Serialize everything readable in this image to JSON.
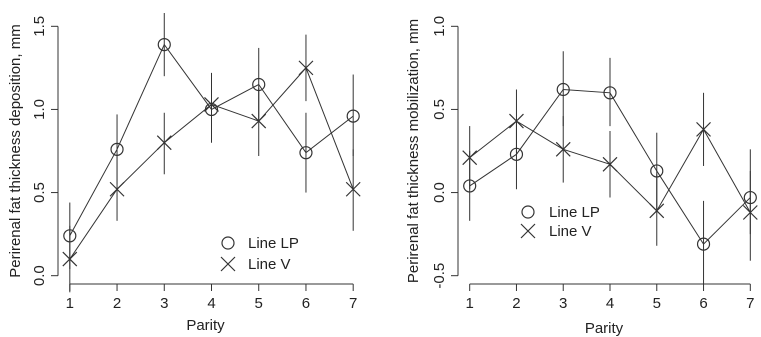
{
  "chart_data": [
    {
      "type": "line",
      "xlabel": "Parity",
      "ylabel": "Perirenal fat thickness deposition, mm",
      "x": [
        1,
        2,
        3,
        4,
        5,
        6,
        7
      ],
      "xlim": [
        0.75,
        7.25
      ],
      "ylim": [
        -0.05,
        1.55
      ],
      "xticks": [
        1,
        2,
        3,
        4,
        5,
        6,
        7
      ],
      "yticks": [
        0.0,
        0.5,
        1.0,
        1.5
      ],
      "ytick_labels": [
        "0.0",
        "0.5",
        "1.0",
        "1.5"
      ],
      "legend_position": "bottom-right",
      "series": [
        {
          "name": "Line LP",
          "marker": "circle",
          "values": [
            0.24,
            0.76,
            1.39,
            1.0,
            1.15,
            0.74,
            0.96
          ],
          "lower": [
            0.04,
            0.55,
            1.2,
            0.8,
            0.93,
            0.5,
            0.72
          ],
          "upper": [
            0.44,
            0.97,
            1.58,
            1.2,
            1.37,
            0.98,
            1.21
          ]
        },
        {
          "name": "Line V",
          "marker": "x",
          "values": [
            0.1,
            0.52,
            0.8,
            1.03,
            0.93,
            1.25,
            0.52
          ],
          "lower": [
            -0.1,
            0.33,
            0.61,
            0.84,
            0.72,
            1.05,
            0.27
          ],
          "upper": [
            0.3,
            0.72,
            0.98,
            1.22,
            1.13,
            1.45,
            0.76
          ]
        }
      ]
    },
    {
      "type": "line",
      "xlabel": "Parity",
      "ylabel": "Perirenal fat thickness mobilization, mm",
      "x": [
        1,
        2,
        3,
        4,
        5,
        6,
        7
      ],
      "xlim": [
        0.75,
        7.25
      ],
      "ylim": [
        -0.55,
        1.05
      ],
      "xticks": [
        1,
        2,
        3,
        4,
        5,
        6,
        7
      ],
      "yticks": [
        -0.5,
        0.0,
        0.5,
        1.0
      ],
      "ytick_labels": [
        "-0.5",
        "0.0",
        "0.5",
        "1.0"
      ],
      "legend_position": "bottom-center",
      "series": [
        {
          "name": "Line LP",
          "marker": "circle",
          "values": [
            0.04,
            0.23,
            0.62,
            0.6,
            0.13,
            -0.31,
            -0.03
          ],
          "lower": [
            -0.17,
            0.02,
            0.4,
            0.4,
            -0.1,
            -0.55,
            -0.25
          ],
          "upper": [
            0.25,
            0.44,
            0.85,
            0.81,
            0.36,
            -0.05,
            0.26
          ]
        },
        {
          "name": "Line V",
          "marker": "x",
          "values": [
            0.21,
            0.43,
            0.26,
            0.17,
            -0.11,
            0.38,
            -0.12
          ],
          "lower": [
            0.02,
            0.24,
            0.06,
            -0.03,
            -0.32,
            0.16,
            -0.41
          ],
          "upper": [
            0.4,
            0.62,
            0.46,
            0.37,
            0.11,
            0.6,
            0.13
          ]
        }
      ]
    }
  ]
}
